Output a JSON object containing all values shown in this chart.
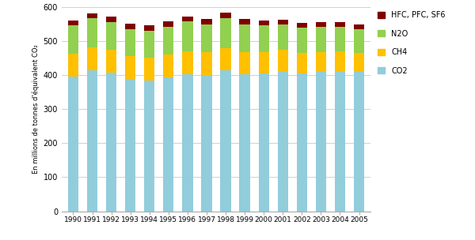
{
  "years": [
    1990,
    1991,
    1992,
    1993,
    1994,
    1995,
    1996,
    1997,
    1998,
    1999,
    2000,
    2001,
    2002,
    2003,
    2004,
    2005
  ],
  "CO2": [
    396,
    414,
    407,
    390,
    385,
    393,
    402,
    400,
    415,
    403,
    406,
    412,
    405,
    410,
    412,
    409
  ],
  "CH4": [
    68,
    68,
    67,
    66,
    67,
    68,
    68,
    67,
    65,
    64,
    63,
    62,
    60,
    59,
    58,
    57
  ],
  "N2O": [
    83,
    85,
    83,
    80,
    79,
    82,
    88,
    83,
    87,
    82,
    78,
    75,
    75,
    74,
    72,
    70
  ],
  "HFC": [
    13,
    14,
    15,
    15,
    15,
    15,
    14,
    15,
    16,
    16,
    14,
    15,
    14,
    14,
    14,
    13
  ],
  "colors": {
    "CO2": "#92CDDC",
    "CH4": "#FFC000",
    "N2O": "#92D050",
    "HFC": "#7F0000"
  },
  "ylabel": "En millions de tonnes d'équivalent CO₂",
  "ylim": [
    0,
    600
  ],
  "yticks": [
    0,
    100,
    200,
    300,
    400,
    500,
    600
  ],
  "background_color": "#ffffff",
  "grid_color": "#d0d0d0",
  "bar_width": 0.55
}
